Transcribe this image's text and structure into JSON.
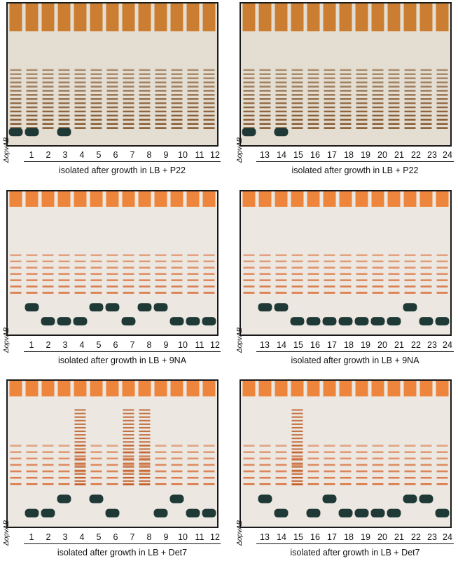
{
  "figure": {
    "control_label": "ΔopvAB",
    "panels": [
      {
        "id": "p22-left",
        "lanes": [
          "1",
          "2",
          "3",
          "4",
          "5",
          "6",
          "7",
          "8",
          "9",
          "10",
          "11",
          "12"
        ],
        "caption": "isolated after growth in LB + P22",
        "stain": "brown",
        "bands": [
          0,
          1,
          0,
          1,
          1,
          1,
          1,
          1,
          1,
          1,
          1,
          1
        ]
      },
      {
        "id": "p22-right",
        "lanes": [
          "13",
          "14",
          "15",
          "16",
          "17",
          "18",
          "19",
          "20",
          "21",
          "22",
          "23",
          "24"
        ],
        "caption": "isolated after growth in LB + P22",
        "stain": "brown",
        "bands": [
          1,
          0,
          1,
          1,
          1,
          1,
          1,
          1,
          1,
          1,
          1,
          1
        ]
      },
      {
        "id": "9na-left",
        "lanes": [
          "1",
          "2",
          "3",
          "4",
          "5",
          "6",
          "7",
          "8",
          "9",
          "10",
          "11",
          "12"
        ],
        "caption": "isolated after growth in LB + 9NA",
        "stain": "orange",
        "bands": [
          2,
          3,
          3,
          3,
          2,
          2,
          3,
          2,
          2,
          3,
          3,
          3
        ]
      },
      {
        "id": "9na-right",
        "lanes": [
          "13",
          "14",
          "15",
          "16",
          "17",
          "18",
          "19",
          "20",
          "21",
          "22",
          "23",
          "24"
        ],
        "caption": "isolated after growth in LB + 9NA",
        "stain": "orange",
        "bands": [
          2,
          2,
          3,
          3,
          3,
          3,
          3,
          3,
          3,
          2,
          3,
          3
        ]
      },
      {
        "id": "det7-left",
        "lanes": [
          "1",
          "2",
          "3",
          "4",
          "5",
          "6",
          "7",
          "8",
          "9",
          "10",
          "11",
          "12"
        ],
        "caption": "isolated after growth in LB + Det7",
        "stain": "orange",
        "bands": [
          3,
          3,
          2,
          1,
          2,
          3,
          1,
          1,
          3,
          2,
          3,
          3
        ]
      },
      {
        "id": "det7-right",
        "lanes": [
          "13",
          "14",
          "15",
          "16",
          "17",
          "18",
          "19",
          "20",
          "21",
          "22",
          "23",
          "24"
        ],
        "caption": "isolated after growth in LB + Det7",
        "stain": "orange",
        "bands": [
          2,
          3,
          1,
          3,
          2,
          3,
          3,
          3,
          3,
          2,
          2,
          3
        ]
      }
    ]
  }
}
